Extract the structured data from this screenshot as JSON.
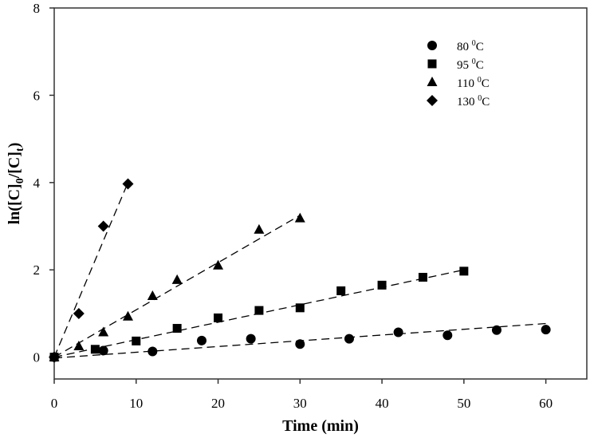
{
  "chart_data": {
    "type": "scatter",
    "title": "",
    "xlabel": "Time (min)",
    "ylabel": "ln([C]0/[C]t)",
    "ylabel_parts": {
      "a": "ln([C]",
      "sub1": "0",
      "b": "/[C]",
      "sub2": "t",
      "c": ")"
    },
    "xlim": [
      0,
      65
    ],
    "ylim": [
      -0.5,
      8
    ],
    "xticks": [
      0,
      10,
      20,
      30,
      40,
      50,
      60
    ],
    "yticks": [
      0,
      2,
      4,
      6,
      8
    ],
    "grid": false,
    "legend_position": "top-right",
    "series": [
      {
        "name": "80 0C",
        "label_main": "80 ",
        "label_sup": "0",
        "label_unit": "C",
        "marker": "circle",
        "x": [
          0,
          6,
          12,
          18,
          24,
          30,
          36,
          42,
          48,
          54,
          60
        ],
        "y": [
          0,
          0.15,
          0.13,
          0.38,
          0.42,
          0.3,
          0.42,
          0.57,
          0.5,
          0.62,
          0.63
        ],
        "fit": {
          "x": [
            0,
            60
          ],
          "y": [
            -0.02,
            0.77
          ]
        }
      },
      {
        "name": "95 0C",
        "label_main": "95 ",
        "label_sup": "0",
        "label_unit": "C",
        "marker": "square",
        "x": [
          0,
          5,
          10,
          15,
          20,
          25,
          30,
          35,
          40,
          45,
          50
        ],
        "y": [
          0,
          0.18,
          0.37,
          0.66,
          0.9,
          1.07,
          1.13,
          1.52,
          1.65,
          1.83,
          1.97
        ],
        "fit": {
          "x": [
            0,
            50
          ],
          "y": [
            0,
            2.0
          ]
        }
      },
      {
        "name": "110 0C",
        "label_main": "110 ",
        "label_sup": "0",
        "label_unit": "C",
        "marker": "triangle",
        "x": [
          0,
          3,
          6,
          9,
          12,
          15,
          20,
          25,
          30
        ],
        "y": [
          0,
          0.25,
          0.57,
          0.93,
          1.4,
          1.77,
          2.1,
          2.92,
          3.18
        ],
        "fit": {
          "x": [
            0,
            30
          ],
          "y": [
            0,
            3.25
          ]
        }
      },
      {
        "name": "130 0C",
        "label_main": "130 ",
        "label_sup": "0",
        "label_unit": "C",
        "marker": "diamond",
        "x": [
          0,
          3,
          6,
          9
        ],
        "y": [
          0,
          1.0,
          3.0,
          3.97
        ],
        "fit": {
          "x": [
            0,
            9
          ],
          "y": [
            0,
            4.0
          ]
        }
      }
    ],
    "color": "#000000"
  }
}
